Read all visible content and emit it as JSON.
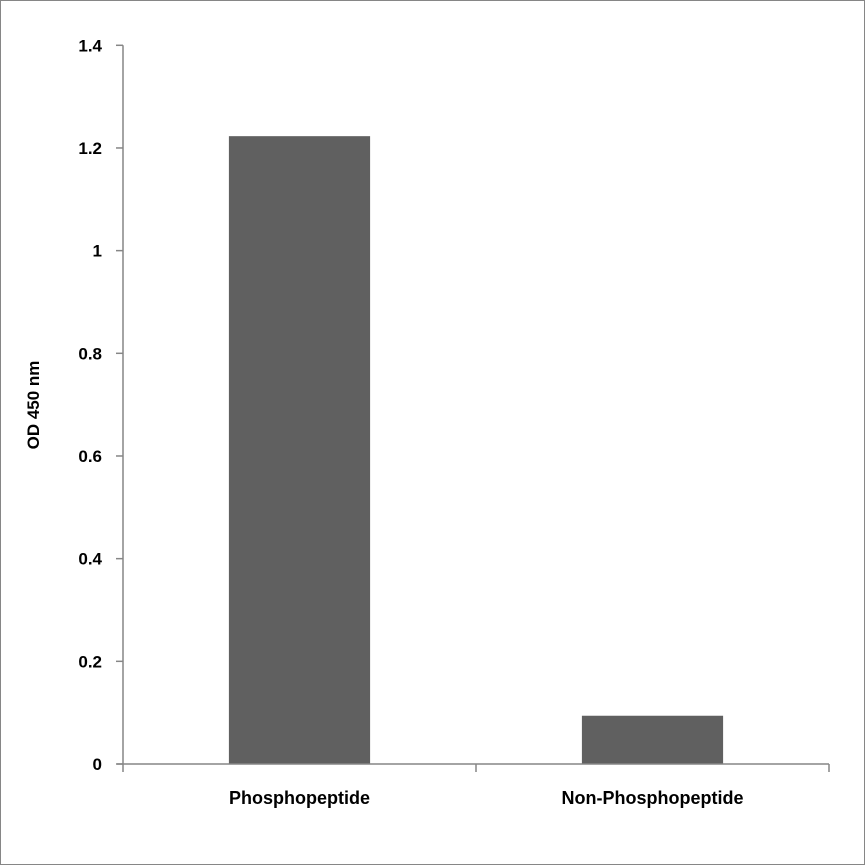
{
  "chart_data": {
    "type": "bar",
    "title": "",
    "xlabel": "",
    "ylabel": "OD 450 nm",
    "categories": [
      "Phosphopeptide",
      "Non-Phosphopeptide"
    ],
    "values": [
      1.223,
      0.094
    ],
    "ylim": [
      0,
      1.4
    ],
    "yticks": [
      "0",
      "0.2",
      "0.4",
      "0.6",
      "0.8",
      "1",
      "1.2",
      "1.4"
    ],
    "grid": false,
    "legend": "none",
    "colors": {
      "bar": "#606060",
      "axis": "#868686"
    }
  }
}
